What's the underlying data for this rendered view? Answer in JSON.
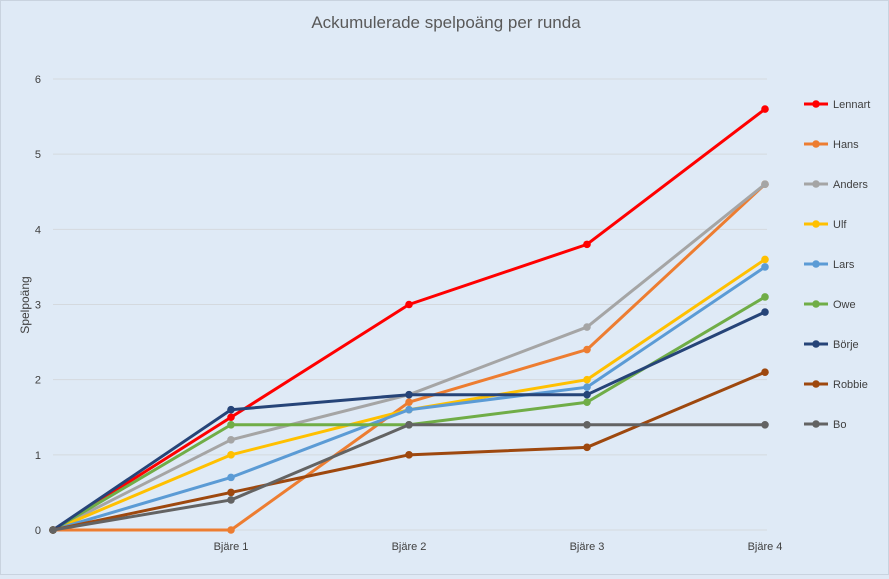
{
  "chart_data": {
    "type": "line",
    "title": "Ackumulerade spelpoäng per runda",
    "xlabel": "",
    "ylabel": "Spelpoäng",
    "categories": [
      "",
      "Bjäre 1",
      "Bjäre 2",
      "Bjäre 3",
      "Bjäre 4"
    ],
    "ylim": [
      0,
      6
    ],
    "yticks": [
      0,
      1,
      2,
      3,
      4,
      5,
      6
    ],
    "grid": true,
    "legend_position": "right",
    "series": [
      {
        "name": "Lennart",
        "color": "#ff0000",
        "values": [
          0,
          1.5,
          3.0,
          3.8,
          5.6
        ]
      },
      {
        "name": "Hans",
        "color": "#ed7d31",
        "values": [
          0,
          0,
          1.7,
          2.4,
          4.6
        ]
      },
      {
        "name": "Anders",
        "color": "#a5a5a5",
        "values": [
          0,
          1.2,
          1.8,
          2.7,
          4.6
        ]
      },
      {
        "name": "Ulf",
        "color": "#ffc000",
        "values": [
          0,
          1.0,
          1.6,
          2.0,
          3.6
        ]
      },
      {
        "name": "Lars",
        "color": "#5b9bd5",
        "values": [
          0,
          0.7,
          1.6,
          1.9,
          3.5
        ]
      },
      {
        "name": "Owe",
        "color": "#70ad47",
        "values": [
          0,
          1.4,
          1.4,
          1.7,
          3.1
        ]
      },
      {
        "name": "Börje",
        "color": "#264478",
        "values": [
          0,
          1.6,
          1.8,
          1.8,
          2.9
        ]
      },
      {
        "name": "Robbie",
        "color": "#9e480e",
        "values": [
          0,
          0.5,
          1.0,
          1.1,
          2.1
        ]
      },
      {
        "name": "Bo",
        "color": "#636363",
        "values": [
          0,
          0.4,
          1.4,
          1.4,
          1.4
        ]
      }
    ]
  }
}
